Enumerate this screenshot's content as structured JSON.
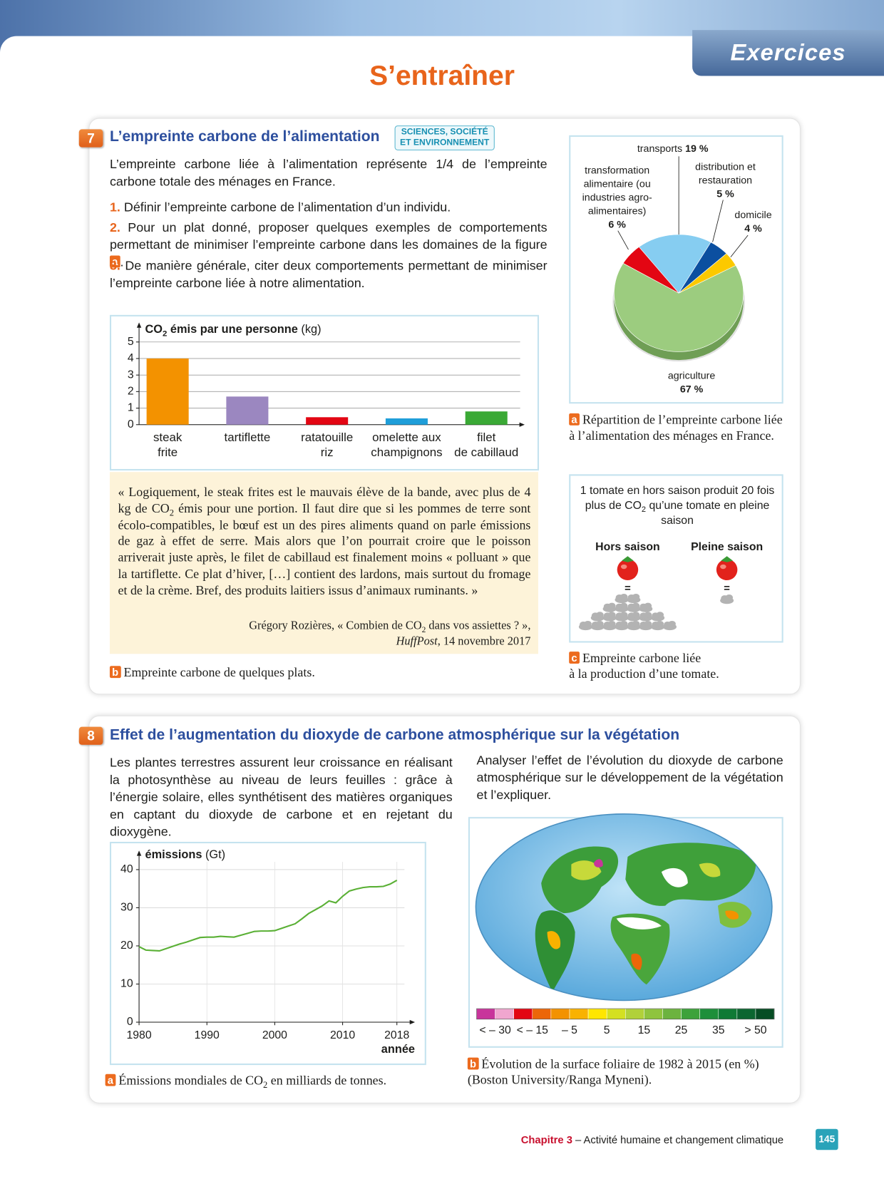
{
  "header": {
    "tab": "Exercices",
    "title": "S’entraîner"
  },
  "exercise_7": {
    "number": "7",
    "title": "L’empreinte carbone de l’alimentation",
    "tag": [
      "SCIENCES, SOCIÉTÉ",
      "ET ENVIRONNEMENT"
    ],
    "intro": "L’empreinte carbone liée à l’alimentation représente 1/4 de l’empreinte carbone totale des ménages en France.",
    "questions": [
      {
        "number": "1.",
        "text": "Définir l’empreinte carbone de l’alimentation d’un individu."
      },
      {
        "number": "2.",
        "text": "Pour un plat donné, proposer quelques exemples de comportements permettant de minimiser l’empreinte carbone dans les domaines de la figure",
        "ref": "a",
        "end": "."
      },
      {
        "number": "3.",
        "text": "De manière générale, citer deux comportements permettant de minimiser l’empreinte carbone liée à notre alimentation."
      }
    ],
    "doc_b": {
      "quote": {
        "before": "« Logiquement, le steak frites est le mauvais élève de la bande, avec plus de 4 kg de CO",
        "sub": "2",
        "after": " émis pour une portion. Il faut dire que si les pommes de terre sont écolo-compatibles, le bœuf est un des pires aliments quand on parle émissions de gaz à effet de serre. Mais alors que l’on pourrait croire que le poisson arriverait juste après, le filet de cabillaud est finalement moins « polluant » que la tartiflette. Ce plat d’hiver, […] contient des lardons, mais surtout du fromage et de la crème. Bref, des produits laitiers issus d’animaux ruminants. »"
      },
      "citation": {
        "before": "Grégory Rozières, « Combien de CO",
        "sub": "2",
        "after": " dans vos assiettes ? »,",
        "source": "HuffPost",
        "date": ", 14 novembre 2017"
      },
      "caption_letter": "b",
      "caption": "Empreinte carbone de quelques plats."
    },
    "doc_a": {
      "caption_letter": "a",
      "caption": "Répartition de l’empreinte carbone liée à l’alimentation des ménages en France."
    },
    "doc_c": {
      "text": {
        "before": "1 tomate en hors saison produit 20 fois plus de CO",
        "sub": "2",
        "after": " qu’une tomate en pleine saison"
      },
      "left_label": "Hors saison",
      "right_label": "Pleine saison",
      "equals": [
        "=",
        "="
      ],
      "caption_letter": "c",
      "caption": "Empreinte carbone liée\nà la production d’une tomate."
    }
  },
  "exercise_8": {
    "number": "8",
    "title": "Effet de l’augmentation du dioxyde de carbone atmosphérique sur la végétation",
    "intro": "Les plantes terrestres assurent leur croissance en réalisant la photosynthèse au niveau de leurs feuilles : grâce à l’énergie solaire, elles synthétisent des matières organiques en captant du dioxyde de carbone et en rejetant du dioxygène.",
    "question": "Analyser l’effet de l’évolution du dioxyde de carbone atmosphérique sur le développement de la végétation et l’expliquer.",
    "doc_a": {
      "caption_letter": "a",
      "caption": {
        "before": "Émissions mondiales de CO",
        "sub": "2",
        "after": " en milliards de tonnes."
      }
    },
    "doc_b": {
      "scale_colors": [
        "#c8359b",
        "#f0a6cf",
        "#e30613",
        "#ec6608",
        "#f39200",
        "#f9b200",
        "#ffe600",
        "#d4e021",
        "#b1d13a",
        "#8fc43e",
        "#6cb33f",
        "#3da23b",
        "#1d8f3a",
        "#0f7a35",
        "#0b6630",
        "#064d24"
      ],
      "scale_labels": [
        "< – 30",
        "< – 15",
        "– 5",
        "5",
        "15",
        "25",
        "35",
        "> 50"
      ],
      "caption_letter": "b",
      "caption": "Évolution de la surface foliaire de 1982 à 2015 (en %)\n(Boston University/Ranga Myneni)."
    }
  },
  "chart_data": [
    {
      "type": "bar",
      "ylabel": {
        "text": "CO",
        "sub": "2",
        "rest": " émis par une personne",
        "unit": "(kg)"
      },
      "categories": [
        "steak\nfrite",
        "tartiflette",
        "ratatouille\nriz",
        "omelette aux\nchampignons",
        "filet\nde cabillaud"
      ],
      "values": [
        4.0,
        1.7,
        0.45,
        0.38,
        0.8
      ],
      "colors": [
        "#f39200",
        "#9b87c0",
        "#e30613",
        "#1f9ed9",
        "#3aa935"
      ],
      "ylim": [
        0,
        5
      ],
      "yticks": [
        0,
        1,
        2,
        3,
        4,
        5
      ],
      "grid": true
    },
    {
      "type": "pie",
      "categories": [
        "transports",
        "distribution et\nrestauration",
        "domicile",
        "agriculture",
        "transformation\nalimentaire (ou\nindustries agro-\nalimentaires)"
      ],
      "values": [
        19,
        5,
        4,
        67,
        6
      ],
      "value_labels": [
        "19 %",
        "5 %",
        "4 %",
        "67 %",
        "6 %"
      ],
      "colors": [
        "#86cdf1",
        "#0b4fa0",
        "#fcc900",
        "#9ccc7f",
        "#e30613"
      ]
    },
    {
      "type": "line",
      "ylabel": {
        "main": "émissions",
        "unit": "(Gt)"
      },
      "xlabel": "année",
      "x": [
        1980,
        1981,
        1982,
        1983,
        1984,
        1985,
        1986,
        1987,
        1988,
        1989,
        1990,
        1991,
        1992,
        1993,
        1994,
        1995,
        1996,
        1997,
        1998,
        1999,
        2000,
        2001,
        2002,
        2003,
        2004,
        2005,
        2006,
        2007,
        2008,
        2009,
        2010,
        2011,
        2012,
        2013,
        2014,
        2015,
        2016,
        2017,
        2018
      ],
      "series": [
        {
          "name": "émissions",
          "color": "#5ab035",
          "values": [
            19.8,
            18.9,
            18.8,
            18.7,
            19.3,
            19.9,
            20.5,
            21.0,
            21.6,
            22.2,
            22.3,
            22.3,
            22.5,
            22.4,
            22.3,
            22.8,
            23.3,
            23.8,
            23.9,
            23.9,
            24.0,
            24.6,
            25.2,
            25.8,
            27.1,
            28.5,
            29.5,
            30.5,
            31.8,
            31.3,
            33.0,
            34.4,
            34.9,
            35.3,
            35.5,
            35.5,
            35.6,
            36.2,
            37.2
          ]
        }
      ],
      "xlim": [
        1980,
        2020
      ],
      "xticks": [
        1980,
        1990,
        2000,
        2010,
        2018
      ],
      "ylim": [
        0,
        44
      ],
      "yticks": [
        0,
        10,
        20,
        30,
        40
      ],
      "grid": true
    }
  ],
  "footer": {
    "chapter": "Chapitre 3",
    "title": " – Activité humaine et changement climatique",
    "page": "145"
  }
}
